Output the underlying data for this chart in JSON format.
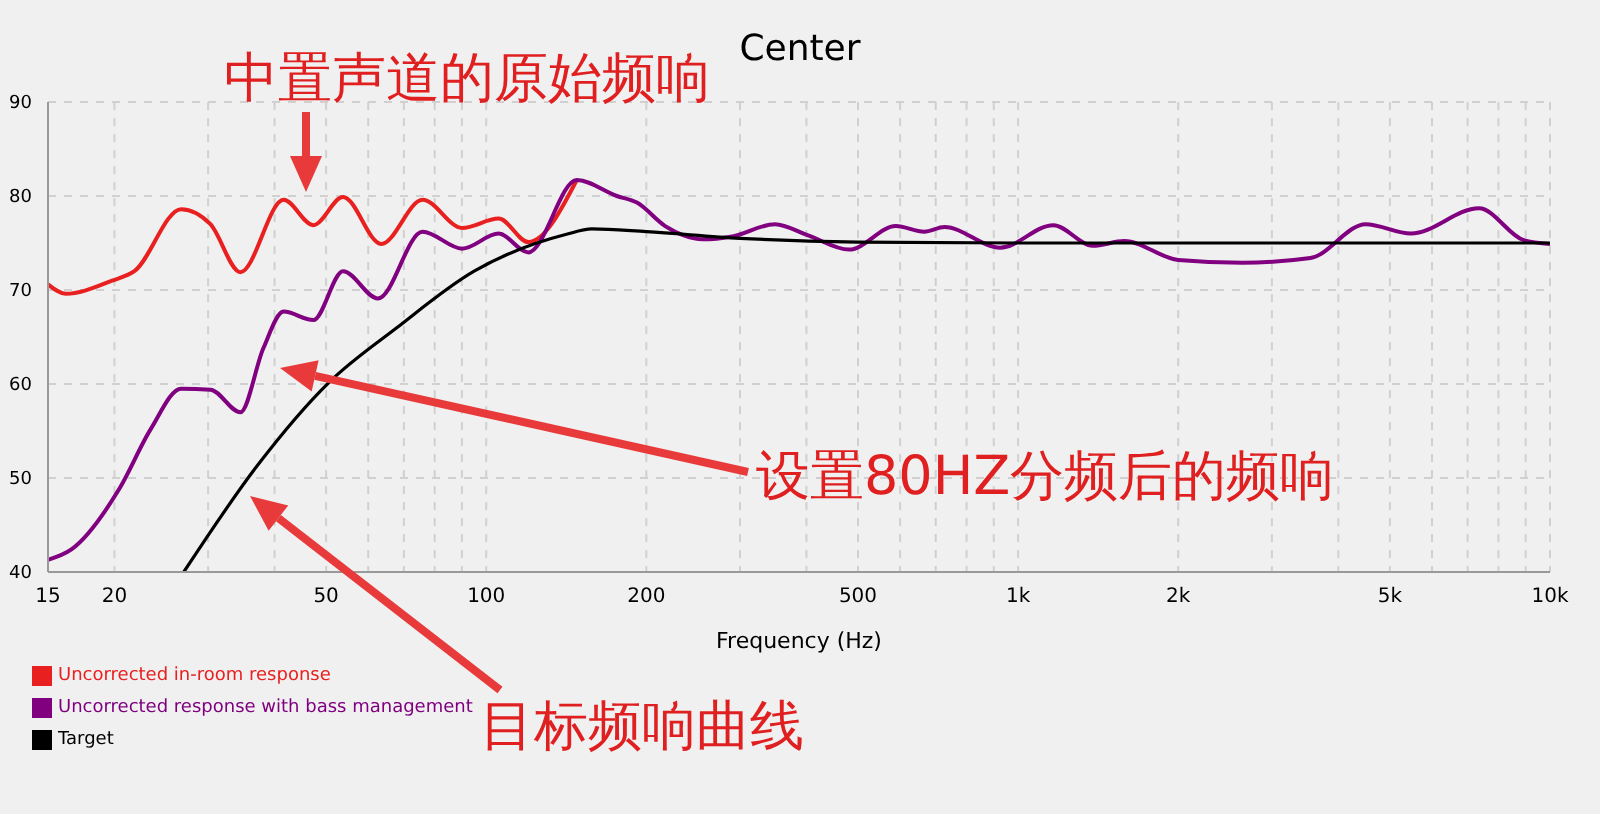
{
  "chart_data": {
    "type": "line",
    "title": "Center",
    "xlabel": "Frequency (Hz)",
    "log": "x",
    "grid": true,
    "legend": "bottom left",
    "marker": "none",
    "line_style": "solid",
    "xlim": [
      15,
      10000
    ],
    "xticks": [
      15,
      20,
      {
        "value": 30,
        "label": null
      },
      {
        "value": 40,
        "label": null
      },
      50,
      {
        "value": 60,
        "label": null
      },
      {
        "value": 70,
        "label": null
      },
      {
        "value": 80,
        "label": null
      },
      {
        "value": 90,
        "label": null
      },
      100,
      200,
      {
        "value": 300,
        "label": null
      },
      {
        "value": 400,
        "label": null
      },
      500,
      {
        "value": 600,
        "label": null
      },
      {
        "value": 700,
        "label": null
      },
      {
        "value": 800,
        "label": null
      },
      {
        "value": 900,
        "label": null
      },
      {
        "value": 1000,
        "label": "1k"
      },
      {
        "value": 2000,
        "label": "2k"
      },
      {
        "value": 3000,
        "label": null
      },
      {
        "value": 4000,
        "label": null
      },
      {
        "value": 5000,
        "label": "5k"
      },
      {
        "value": 6000,
        "label": null
      },
      {
        "value": 7000,
        "label": null
      },
      {
        "value": 8000,
        "label": null
      },
      {
        "value": 9000,
        "label": null
      },
      {
        "value": 10000,
        "label": "10k"
      }
    ],
    "ylim": [
      40,
      90
    ],
    "yticks": [
      40,
      50,
      60,
      70,
      80,
      90
    ],
    "series": [
      {
        "name": "Uncorrected in-room response",
        "color": "#e8201f",
        "x": [
          15,
          16.2,
          19.8,
          21.8,
          26.7,
          30.3,
          34.5,
          41.6,
          47.3,
          53.8,
          63.5,
          75.9,
          90.1,
          105.5,
          120,
          148
        ],
        "values": [
          70.6,
          69.6,
          71,
          72,
          78.6,
          77,
          71.9,
          79.6,
          76.9,
          79.9,
          74.9,
          79.6,
          76.6,
          77.6,
          75.1,
          81.7
        ]
      },
      {
        "name": "Uncorrected response with bass management",
        "color": "#800080",
        "x": [
          15,
          16.6,
          20.4,
          23.4,
          26.7,
          30.3,
          34.5,
          38.1,
          41.6,
          47.3,
          53.8,
          62.6,
          75.9,
          90.1,
          105.5,
          120,
          148,
          176,
          192,
          217,
          255,
          290,
          349,
          403,
          481,
          589,
          666,
          727,
          925,
          1165,
          1382,
          1583,
          2001,
          2640,
          3545,
          4502,
          5476,
          7352,
          8925,
          10000
        ],
        "values": [
          41.3,
          42.4,
          48.8,
          55.2,
          59.5,
          59.4,
          57,
          63.8,
          67.7,
          66.8,
          72,
          69.1,
          76.2,
          74.4,
          76,
          74,
          81.7,
          80,
          79.3,
          76.8,
          75.4,
          75.7,
          77,
          75.8,
          74.3,
          76.8,
          76.2,
          76.7,
          74.5,
          76.9,
          74.7,
          75.2,
          73.2,
          72.9,
          73.4,
          77,
          76,
          78.7,
          75.3,
          74.9
        ]
      },
      {
        "name": "Target",
        "color": "#000000",
        "x": [
          27,
          37.1,
          50.7,
          67.6,
          94.9,
          141,
          158,
          200,
          300,
          500,
          1000,
          10000
        ],
        "values": [
          40,
          51.3,
          60.2,
          65.9,
          72,
          75.9,
          76.5,
          76.2,
          75.5,
          75.1,
          75,
          75
        ]
      }
    ],
    "annotations": [
      "中置声道的原始频响",
      "设置80HZ分频后的频响",
      "目标频响曲线"
    ]
  }
}
